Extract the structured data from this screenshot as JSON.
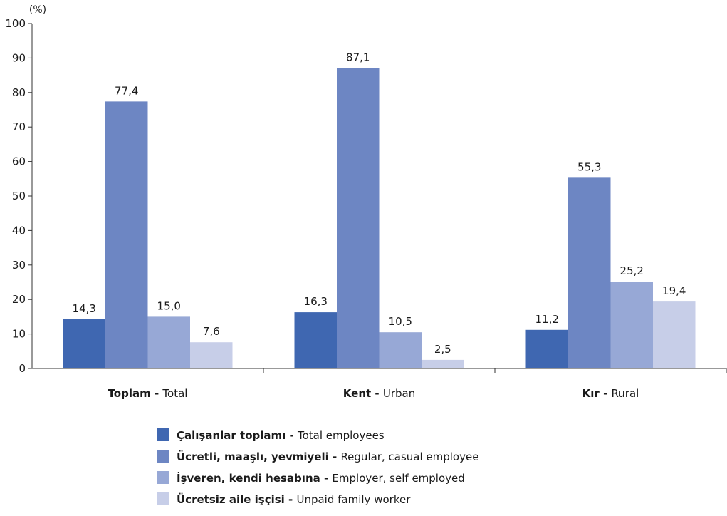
{
  "chart_data": {
    "type": "bar",
    "unit_label": "(%)",
    "ylim": [
      0,
      100
    ],
    "yticks": [
      0,
      10,
      20,
      30,
      40,
      50,
      60,
      70,
      80,
      90,
      100
    ],
    "grid": false,
    "legend_position": "bottom",
    "categories": [
      {
        "bold": "Toplam",
        "sep": " - ",
        "normal": "Total"
      },
      {
        "bold": "Kent",
        "sep": " - ",
        "normal": "Urban"
      },
      {
        "bold": "Kır",
        "sep": " - ",
        "normal": "Rural"
      }
    ],
    "series": [
      {
        "name_bold": "Çalışanlar toplamı",
        "sep": " - ",
        "name_normal": "Total employees",
        "color": "#3f67b1",
        "values": [
          14.3,
          16.3,
          11.2
        ],
        "labels": [
          "14,3",
          "16,3",
          "11,2"
        ]
      },
      {
        "name_bold": "Ücretli, maaşlı, yevmiyeli",
        "sep": " - ",
        "name_normal": "Regular, casual employee",
        "color": "#6d86c3",
        "values": [
          77.4,
          87.1,
          55.3
        ],
        "labels": [
          "77,4",
          "87,1",
          "55,3"
        ]
      },
      {
        "name_bold": "İşveren, kendi hesabına",
        "sep": " - ",
        "name_normal": "Employer, self employed",
        "color": "#97a8d6",
        "values": [
          15.0,
          10.5,
          25.2
        ],
        "labels": [
          "15,0",
          "10,5",
          "25,2"
        ]
      },
      {
        "name_bold": "Ücretsiz aile işçisi",
        "sep": " - ",
        "name_normal": "Unpaid family worker",
        "color": "#c7cee8",
        "values": [
          7.6,
          2.5,
          19.4
        ],
        "labels": [
          "7,6",
          "2,5",
          "19,4"
        ]
      }
    ]
  }
}
